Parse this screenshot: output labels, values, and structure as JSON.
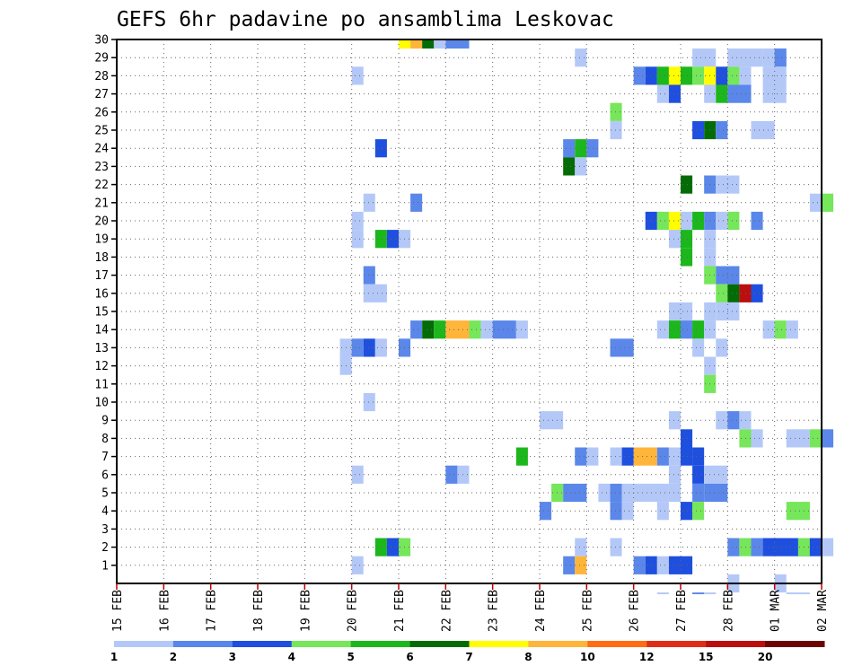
{
  "chart_data": {
    "type": "heatmap",
    "title": "GEFS 6hr padavine po ansamblima Leskovac",
    "x_tick_labels": [
      "15 FEB",
      "16 FEB",
      "17 FEB",
      "18 FEB",
      "19 FEB",
      "20 FEB",
      "21 FEB",
      "22 FEB",
      "23 FEB",
      "24 FEB",
      "25 FEB",
      "26 FEB",
      "27 FEB",
      "28 FEB",
      "01 MAR",
      "02 MAR"
    ],
    "x_range_days": [
      15,
      30
    ],
    "y_range": [
      0,
      30
    ],
    "y_ticks": [
      1,
      2,
      3,
      4,
      5,
      6,
      7,
      8,
      9,
      10,
      11,
      12,
      13,
      14,
      15,
      16,
      17,
      18,
      19,
      20,
      21,
      22,
      23,
      24,
      25,
      26,
      27,
      28,
      29,
      30
    ],
    "grid": true,
    "time_step_hours": 6,
    "colorbar": {
      "labels": [
        "1",
        "2",
        "3",
        "4",
        "5",
        "6",
        "7",
        "8",
        "10",
        "12",
        "15",
        "20"
      ],
      "colors": [
        "#b4c8f8",
        "#5a87e9",
        "#1f4fde",
        "#76e65a",
        "#1cb71c",
        "#046c06",
        "#fffd00",
        "#ffb43a",
        "#ff6c15",
        "#e02e16",
        "#bb0f0f",
        "#6c0404"
      ]
    },
    "cells": [
      [
        30,
        21,
        1,
        6
      ],
      [
        30,
        21.25,
        1,
        7
      ],
      [
        30,
        21.5,
        1,
        5
      ],
      [
        30,
        21.75,
        1,
        0
      ],
      [
        30,
        22,
        2,
        1
      ],
      [
        29,
        24.75,
        1,
        0
      ],
      [
        29,
        27.25,
        2,
        0
      ],
      [
        29,
        28,
        3,
        0
      ],
      [
        29,
        28.75,
        2,
        0
      ],
      [
        29,
        29,
        1,
        1
      ],
      [
        28,
        20,
        1,
        0
      ],
      [
        28,
        26,
        1,
        1
      ],
      [
        28,
        26.25,
        1,
        2
      ],
      [
        28,
        26.5,
        1,
        4
      ],
      [
        28,
        26.75,
        1,
        6
      ],
      [
        28,
        27,
        1,
        4
      ],
      [
        28,
        27.25,
        1,
        3
      ],
      [
        28,
        27.5,
        1,
        6
      ],
      [
        28,
        27.75,
        1,
        2
      ],
      [
        28,
        28,
        1,
        3
      ],
      [
        28,
        28.25,
        1,
        0
      ],
      [
        28,
        28.75,
        2,
        0
      ],
      [
        27,
        26.5,
        1,
        0
      ],
      [
        27,
        26.75,
        1,
        2
      ],
      [
        27,
        27.5,
        1,
        0
      ],
      [
        27,
        27.75,
        1,
        4
      ],
      [
        27,
        28,
        2,
        1
      ],
      [
        27,
        28.75,
        2,
        0
      ],
      [
        26,
        25.5,
        1,
        3
      ],
      [
        25,
        25.5,
        1,
        0
      ],
      [
        25,
        27.25,
        1,
        2
      ],
      [
        25,
        27.5,
        1,
        5
      ],
      [
        25,
        27.75,
        1,
        1
      ],
      [
        25,
        28.5,
        2,
        0
      ],
      [
        24,
        20.5,
        1,
        2
      ],
      [
        24,
        24.5,
        1,
        1
      ],
      [
        24,
        24.75,
        1,
        4
      ],
      [
        24,
        25,
        1,
        1
      ],
      [
        23,
        24.5,
        1,
        5
      ],
      [
        23,
        24.75,
        1,
        0
      ],
      [
        22,
        27,
        1,
        5
      ],
      [
        22,
        27.5,
        1,
        1
      ],
      [
        22,
        27.75,
        2,
        0
      ],
      [
        21,
        20.25,
        1,
        0
      ],
      [
        21,
        21.25,
        1,
        1
      ],
      [
        21,
        29.75,
        1,
        0
      ],
      [
        21,
        30,
        1,
        3
      ],
      [
        20,
        20,
        1,
        0
      ],
      [
        20,
        26.25,
        1,
        2
      ],
      [
        20,
        26.5,
        1,
        3
      ],
      [
        20,
        26.75,
        1,
        6
      ],
      [
        20,
        27,
        1,
        0
      ],
      [
        20,
        27.25,
        1,
        4
      ],
      [
        20,
        27.5,
        1,
        1
      ],
      [
        20,
        27.75,
        1,
        0
      ],
      [
        20,
        28,
        1,
        3
      ],
      [
        20,
        28.5,
        1,
        1
      ],
      [
        19,
        20,
        1,
        0
      ],
      [
        19,
        20.5,
        1,
        4
      ],
      [
        19,
        20.75,
        1,
        2
      ],
      [
        19,
        21,
        1,
        0
      ],
      [
        19,
        26.75,
        1,
        0
      ],
      [
        19,
        27,
        1,
        4
      ],
      [
        19,
        27.5,
        1,
        0
      ],
      [
        18,
        27,
        1,
        4
      ],
      [
        18,
        27.5,
        1,
        0
      ],
      [
        17,
        20.25,
        1,
        1
      ],
      [
        17,
        27.5,
        1,
        3
      ],
      [
        17,
        27.75,
        2,
        1
      ],
      [
        16,
        20.25,
        2,
        0
      ],
      [
        16,
        27.75,
        1,
        3
      ],
      [
        16,
        28,
        1,
        5
      ],
      [
        16,
        28.25,
        1,
        10
      ],
      [
        16,
        28.5,
        1,
        2
      ],
      [
        15,
        26.75,
        2,
        0
      ],
      [
        15,
        27.5,
        1,
        0
      ],
      [
        15,
        27.75,
        2,
        0
      ],
      [
        14,
        21.25,
        1,
        1
      ],
      [
        14,
        21.5,
        1,
        5
      ],
      [
        14,
        21.75,
        1,
        4
      ],
      [
        14,
        22,
        2,
        7
      ],
      [
        14,
        22.5,
        1,
        3
      ],
      [
        14,
        22.75,
        1,
        0
      ],
      [
        14,
        23,
        2,
        1
      ],
      [
        14,
        23.5,
        1,
        0
      ],
      [
        14,
        26.5,
        1,
        0
      ],
      [
        14,
        26.75,
        1,
        4
      ],
      [
        14,
        27,
        1,
        1
      ],
      [
        14,
        27.25,
        1,
        4
      ],
      [
        14,
        27.5,
        1,
        0
      ],
      [
        14,
        28.75,
        1,
        0
      ],
      [
        14,
        29,
        1,
        3
      ],
      [
        14,
        29.25,
        1,
        0
      ],
      [
        13,
        19.75,
        1,
        0
      ],
      [
        13,
        20,
        1,
        1
      ],
      [
        13,
        20.25,
        1,
        2
      ],
      [
        13,
        20.5,
        1,
        0
      ],
      [
        13,
        21,
        1,
        1
      ],
      [
        13,
        25.5,
        2,
        1
      ],
      [
        13,
        27.25,
        1,
        0
      ],
      [
        13,
        27.75,
        1,
        0
      ],
      [
        12,
        19.75,
        1,
        0
      ],
      [
        12,
        27.5,
        1,
        0
      ],
      [
        11,
        27.5,
        1,
        3
      ],
      [
        10,
        20.25,
        1,
        0
      ],
      [
        9,
        24,
        2,
        0
      ],
      [
        9,
        26.75,
        1,
        0
      ],
      [
        9,
        27.75,
        1,
        0
      ],
      [
        9,
        28,
        1,
        1
      ],
      [
        9,
        28.25,
        1,
        0
      ],
      [
        8,
        27,
        1,
        2
      ],
      [
        8,
        28.25,
        1,
        3
      ],
      [
        8,
        28.5,
        1,
        0
      ],
      [
        8,
        29.25,
        2,
        0
      ],
      [
        8,
        29.75,
        1,
        3
      ],
      [
        8,
        30,
        1,
        1
      ],
      [
        7,
        23.5,
        1,
        4
      ],
      [
        7,
        24.75,
        1,
        1
      ],
      [
        7,
        25,
        1,
        0
      ],
      [
        7,
        25.5,
        1,
        0
      ],
      [
        7,
        25.75,
        1,
        2
      ],
      [
        7,
        26,
        2,
        7
      ],
      [
        7,
        26.5,
        1,
        1
      ],
      [
        7,
        26.75,
        1,
        0
      ],
      [
        7,
        27,
        1,
        2
      ],
      [
        7,
        27.25,
        1,
        2
      ],
      [
        6,
        20,
        1,
        0
      ],
      [
        6,
        22,
        1,
        1
      ],
      [
        6,
        22.25,
        1,
        0
      ],
      [
        6,
        26.75,
        1,
        0
      ],
      [
        6,
        27.25,
        1,
        2
      ],
      [
        6,
        27.5,
        2,
        0
      ],
      [
        5,
        24.25,
        1,
        3
      ],
      [
        5,
        24.5,
        2,
        1
      ],
      [
        5,
        25.25,
        1,
        0
      ],
      [
        5,
        25.5,
        1,
        1
      ],
      [
        5,
        25.75,
        1,
        0
      ],
      [
        5,
        26,
        3,
        0
      ],
      [
        5,
        26.75,
        1,
        0
      ],
      [
        5,
        27.25,
        1,
        1
      ],
      [
        5,
        27.5,
        2,
        1
      ],
      [
        4,
        24,
        1,
        1
      ],
      [
        4,
        25.5,
        1,
        1
      ],
      [
        4,
        25.75,
        1,
        0
      ],
      [
        4,
        26.5,
        1,
        0
      ],
      [
        4,
        27,
        1,
        2
      ],
      [
        4,
        27.25,
        1,
        3
      ],
      [
        4,
        29.25,
        2,
        3
      ],
      [
        2,
        20.5,
        1,
        4
      ],
      [
        2,
        20.75,
        1,
        2
      ],
      [
        2,
        21,
        1,
        3
      ],
      [
        2,
        24.75,
        1,
        0
      ],
      [
        2,
        25.5,
        1,
        0
      ],
      [
        2,
        28,
        1,
        1
      ],
      [
        2,
        28.25,
        1,
        3
      ],
      [
        2,
        28.5,
        1,
        1
      ],
      [
        2,
        28.75,
        4,
        2
      ],
      [
        2,
        29.5,
        1,
        3
      ],
      [
        2,
        29.75,
        1,
        2
      ],
      [
        2,
        30,
        1,
        0
      ],
      [
        1,
        20,
        1,
        0
      ],
      [
        1,
        24.5,
        1,
        1
      ],
      [
        1,
        24.75,
        1,
        7
      ],
      [
        1,
        26,
        1,
        1
      ],
      [
        1,
        26.25,
        1,
        2
      ],
      [
        1,
        26.5,
        1,
        0
      ],
      [
        1,
        26.75,
        2,
        2
      ],
      [
        0,
        28,
        1,
        0
      ],
      [
        0,
        29,
        1,
        0
      ],
      [
        -1,
        26.5,
        1,
        0
      ],
      [
        -1,
        27.25,
        1,
        1
      ],
      [
        -1,
        27.5,
        1,
        0
      ],
      [
        -1,
        29.25,
        2,
        0
      ]
    ]
  }
}
